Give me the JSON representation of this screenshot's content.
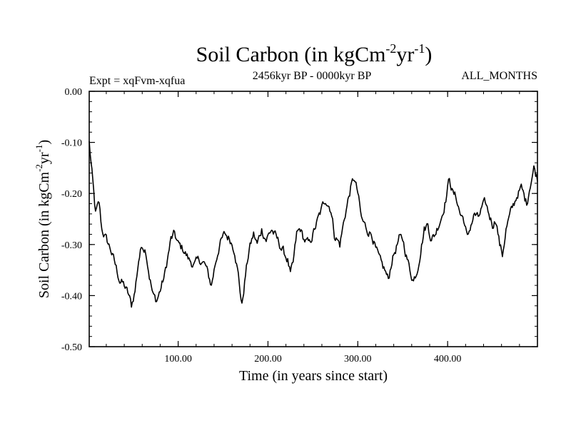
{
  "chart_data": {
    "type": "line",
    "title": {
      "main": "Soil Carbon (in kgCm",
      "exp1": "-2",
      "mid": "yr",
      "exp2": "-1",
      "close": ")"
    },
    "subtitle_left": "Expt = xqFvm-xqfua",
    "subtitle_center": "2456kyr BP - 0000kyr BP",
    "subtitle_right": "ALL_MONTHS",
    "xlabel": "Time (in years since start)",
    "ylabel": {
      "main": "Soil Carbon (in kgCm",
      "exp1": "-2",
      "mid": "yr",
      "exp2": "-1",
      "close": ")"
    },
    "xlim": [
      1,
      500
    ],
    "ylim": [
      -0.5,
      0.0
    ],
    "x_ticks": [
      100,
      200,
      300,
      400
    ],
    "x_tick_labels": [
      "100.00",
      "200.00",
      "300.00",
      "400.00"
    ],
    "y_ticks": [
      0.0,
      -0.1,
      -0.2,
      -0.3,
      -0.4,
      -0.5
    ],
    "y_tick_labels": [
      "0.00",
      "-0.10",
      "-0.20",
      "-0.30",
      "-0.40",
      "-0.50"
    ],
    "series": [
      {
        "name": "Soil Carbon",
        "color": "#000000",
        "anchors": [
          [
            1,
            -0.1
          ],
          [
            4,
            -0.16
          ],
          [
            8,
            -0.24
          ],
          [
            12,
            -0.22
          ],
          [
            15,
            -0.27
          ],
          [
            20,
            -0.29
          ],
          [
            25,
            -0.31
          ],
          [
            30,
            -0.34
          ],
          [
            35,
            -0.37
          ],
          [
            40,
            -0.38
          ],
          [
            45,
            -0.4
          ],
          [
            48,
            -0.42
          ],
          [
            52,
            -0.39
          ],
          [
            56,
            -0.33
          ],
          [
            60,
            -0.3
          ],
          [
            64,
            -0.31
          ],
          [
            68,
            -0.36
          ],
          [
            72,
            -0.4
          ],
          [
            76,
            -0.41
          ],
          [
            80,
            -0.39
          ],
          [
            85,
            -0.36
          ],
          [
            88,
            -0.33
          ],
          [
            92,
            -0.29
          ],
          [
            96,
            -0.28
          ],
          [
            100,
            -0.3
          ],
          [
            106,
            -0.31
          ],
          [
            112,
            -0.33
          ],
          [
            118,
            -0.34
          ],
          [
            124,
            -0.33
          ],
          [
            130,
            -0.34
          ],
          [
            137,
            -0.38
          ],
          [
            141,
            -0.34
          ],
          [
            146,
            -0.3
          ],
          [
            152,
            -0.28
          ],
          [
            158,
            -0.29
          ],
          [
            163,
            -0.31
          ],
          [
            167,
            -0.36
          ],
          [
            171,
            -0.42
          ],
          [
            175,
            -0.36
          ],
          [
            179,
            -0.31
          ],
          [
            184,
            -0.28
          ],
          [
            188,
            -0.3
          ],
          [
            193,
            -0.27
          ],
          [
            198,
            -0.29
          ],
          [
            204,
            -0.27
          ],
          [
            210,
            -0.29
          ],
          [
            216,
            -0.31
          ],
          [
            222,
            -0.33
          ],
          [
            225,
            -0.36
          ],
          [
            228,
            -0.34
          ],
          [
            232,
            -0.28
          ],
          [
            236,
            -0.27
          ],
          [
            240,
            -0.29
          ],
          [
            246,
            -0.3
          ],
          [
            252,
            -0.27
          ],
          [
            258,
            -0.24
          ],
          [
            264,
            -0.21
          ],
          [
            270,
            -0.23
          ],
          [
            274,
            -0.28
          ],
          [
            280,
            -0.3
          ],
          [
            286,
            -0.24
          ],
          [
            292,
            -0.19
          ],
          [
            296,
            -0.17
          ],
          [
            300,
            -0.2
          ],
          [
            304,
            -0.25
          ],
          [
            310,
            -0.27
          ],
          [
            316,
            -0.28
          ],
          [
            320,
            -0.31
          ],
          [
            326,
            -0.34
          ],
          [
            330,
            -0.35
          ],
          [
            334,
            -0.37
          ],
          [
            338,
            -0.33
          ],
          [
            342,
            -0.31
          ],
          [
            346,
            -0.29
          ],
          [
            350,
            -0.29
          ],
          [
            354,
            -0.32
          ],
          [
            358,
            -0.35
          ],
          [
            362,
            -0.37
          ],
          [
            366,
            -0.35
          ],
          [
            370,
            -0.31
          ],
          [
            374,
            -0.27
          ],
          [
            378,
            -0.26
          ],
          [
            382,
            -0.29
          ],
          [
            386,
            -0.28
          ],
          [
            390,
            -0.26
          ],
          [
            394,
            -0.24
          ],
          [
            398,
            -0.21
          ],
          [
            402,
            -0.17
          ],
          [
            406,
            -0.2
          ],
          [
            410,
            -0.21
          ],
          [
            414,
            -0.24
          ],
          [
            418,
            -0.25
          ],
          [
            422,
            -0.29
          ],
          [
            426,
            -0.26
          ],
          [
            430,
            -0.24
          ],
          [
            434,
            -0.25
          ],
          [
            438,
            -0.23
          ],
          [
            442,
            -0.22
          ],
          [
            446,
            -0.24
          ],
          [
            450,
            -0.26
          ],
          [
            454,
            -0.25
          ],
          [
            458,
            -0.3
          ],
          [
            461,
            -0.32
          ],
          [
            465,
            -0.27
          ],
          [
            470,
            -0.24
          ],
          [
            474,
            -0.22
          ],
          [
            478,
            -0.2
          ],
          [
            482,
            -0.19
          ],
          [
            486,
            -0.21
          ],
          [
            488,
            -0.22
          ],
          [
            492,
            -0.18
          ],
          [
            496,
            -0.15
          ],
          [
            500,
            -0.17
          ]
        ]
      }
    ]
  }
}
